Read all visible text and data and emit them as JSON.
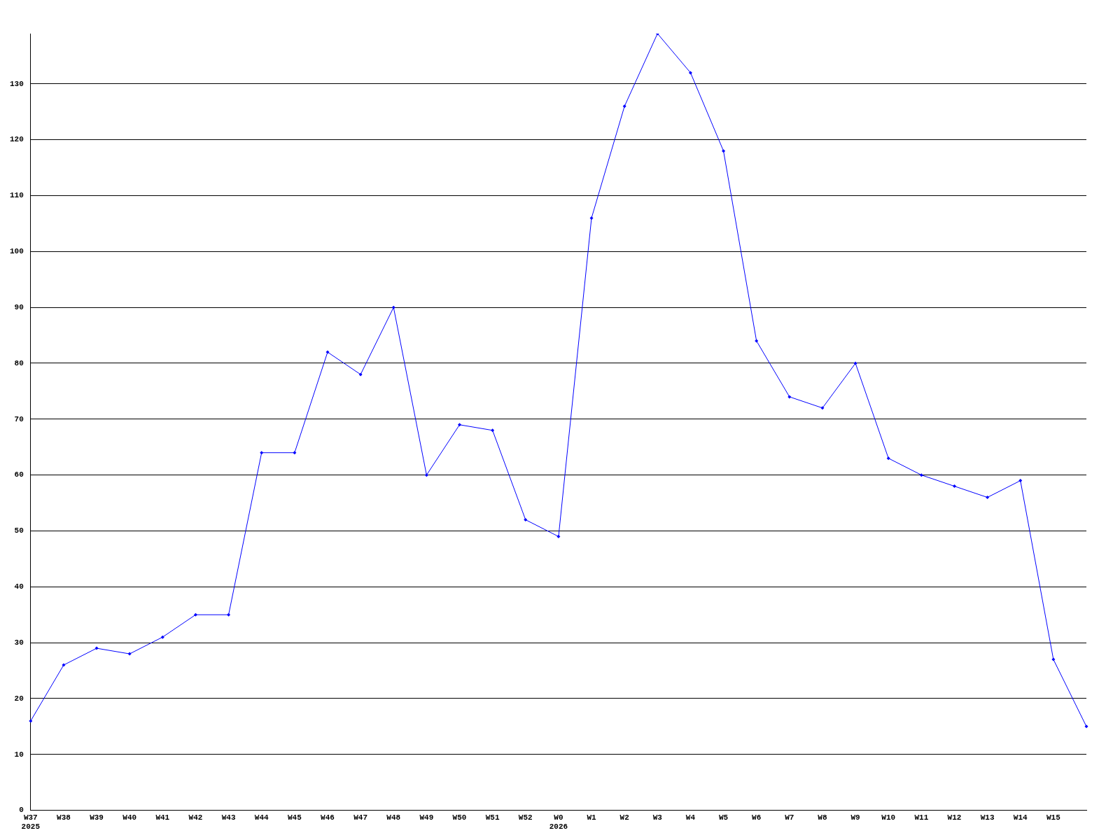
{
  "chart_data": {
    "type": "line",
    "categories": [
      "W37\n2025",
      "W38",
      "W39",
      "W40",
      "W41",
      "W42",
      "W43",
      "W44",
      "W45",
      "W46",
      "W47",
      "W48",
      "W49",
      "W50",
      "W51",
      "W52",
      "W0\n2026",
      "W1",
      "W2",
      "W3",
      "W4",
      "W5",
      "W6",
      "W7",
      "W8",
      "W9",
      "W10",
      "W11",
      "W12",
      "W13",
      "W14",
      "W15",
      null
    ],
    "series": [
      {
        "color": "#0000ff",
        "values": [
          16,
          26,
          29,
          28,
          31,
          35,
          35,
          64,
          64,
          82,
          78,
          90,
          60,
          69,
          68,
          52,
          49,
          106,
          126,
          139,
          132,
          118,
          84,
          74,
          72,
          80,
          63,
          60,
          58,
          56,
          59,
          27,
          15
        ]
      }
    ],
    "ylim": [
      0,
      139
    ],
    "yticks": [
      0,
      10,
      20,
      30,
      40,
      50,
      60,
      70,
      80,
      90,
      100,
      110,
      120,
      130
    ],
    "grid": "y",
    "legend": false,
    "marker": "diamond",
    "line_style": "solid"
  }
}
